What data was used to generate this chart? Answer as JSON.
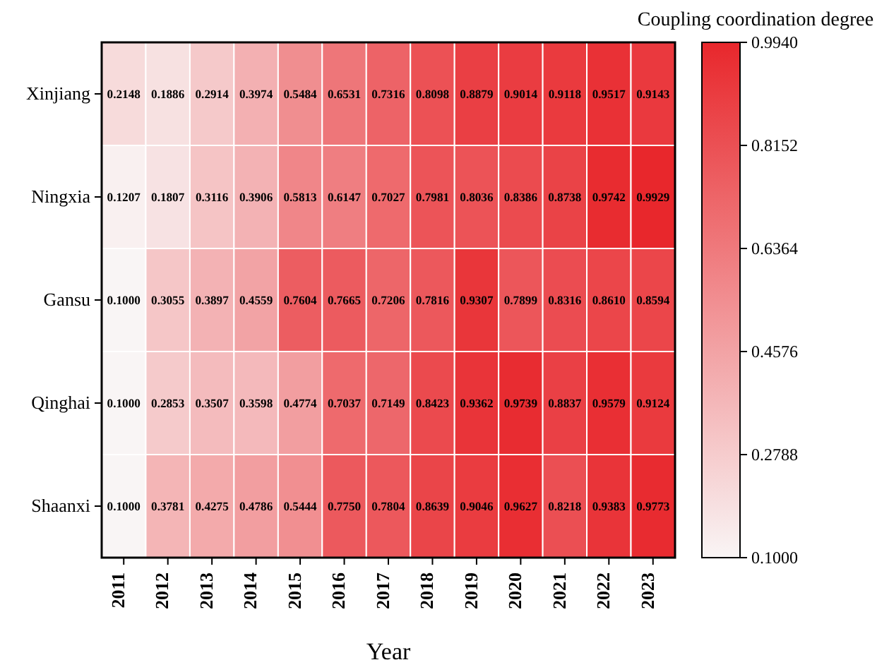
{
  "chart_data": {
    "type": "heatmap",
    "xlabel": "Year",
    "clabel": "Coupling coordination degree",
    "categories": [
      "2011",
      "2012",
      "2013",
      "2014",
      "2015",
      "2016",
      "2017",
      "2018",
      "2019",
      "2020",
      "2021",
      "2022",
      "2023"
    ],
    "y_categories": [
      "Xinjiang",
      "Ningxia",
      "Gansu",
      "Qinghai",
      "Shaanxi"
    ],
    "cells": [
      [
        0.2148,
        0.1886,
        0.2914,
        0.3974,
        0.5484,
        0.6531,
        0.7316,
        0.8098,
        0.8879,
        0.9014,
        0.9118,
        0.9517,
        0.9143
      ],
      [
        0.1207,
        0.1807,
        0.3116,
        0.3906,
        0.5813,
        0.6147,
        0.7027,
        0.7981,
        0.8036,
        0.8386,
        0.8738,
        0.9742,
        0.9929
      ],
      [
        0.1,
        0.3055,
        0.3897,
        0.4559,
        0.7604,
        0.7665,
        0.7206,
        0.7816,
        0.9307,
        0.7899,
        0.8316,
        0.861,
        0.8594
      ],
      [
        0.1,
        0.2853,
        0.3507,
        0.3598,
        0.4774,
        0.7037,
        0.7149,
        0.8423,
        0.9362,
        0.9739,
        0.8837,
        0.9579,
        0.9124
      ],
      [
        0.1,
        0.3781,
        0.4275,
        0.4786,
        0.5444,
        0.775,
        0.7804,
        0.8639,
        0.9046,
        0.9627,
        0.8218,
        0.9383,
        0.9773
      ]
    ],
    "cell_labels": [
      [
        "0.2148",
        "0.1886",
        "0.2914",
        "0.3974",
        "0.5484",
        "0.6531",
        "0.7316",
        "0.8098",
        "0.8879",
        "0.9014",
        "0.9118",
        "0.9517",
        "0.9143"
      ],
      [
        "0.1207",
        "0.1807",
        "0.3116",
        "0.3906",
        "0.5813",
        "0.6147",
        "0.7027",
        "0.7981",
        "0.8036",
        "0.8386",
        "0.8738",
        "0.9742",
        "0.9929"
      ],
      [
        "0.1000",
        "0.3055",
        "0.3897",
        "0.4559",
        "0.7604",
        "0.7665",
        "0.7206",
        "0.7816",
        "0.9307",
        "0.7899",
        "0.8316",
        "0.8610",
        "0.8594"
      ],
      [
        "0.1000",
        "0.2853",
        "0.3507",
        "0.3598",
        "0.4774",
        "0.7037",
        "0.7149",
        "0.8423",
        "0.9362",
        "0.9739",
        "0.8837",
        "0.9579",
        "0.9124"
      ],
      [
        "0.1000",
        "0.3781",
        "0.4275",
        "0.4786",
        "0.5444",
        "0.7750",
        "0.7804",
        "0.8639",
        "0.9046",
        "0.9627",
        "0.8218",
        "0.9383",
        "0.9773"
      ]
    ],
    "clim": [
      0.1,
      0.994
    ],
    "cticks": [
      {
        "value": 0.1,
        "label": "0.1000"
      },
      {
        "value": 0.2788,
        "label": "0.2788"
      },
      {
        "value": 0.4576,
        "label": "0.4576"
      },
      {
        "value": 0.6364,
        "label": "0.6364"
      },
      {
        "value": 0.8152,
        "label": "0.8152"
      },
      {
        "value": 0.994,
        "label": "0.9940"
      }
    ],
    "data_labels": true
  }
}
